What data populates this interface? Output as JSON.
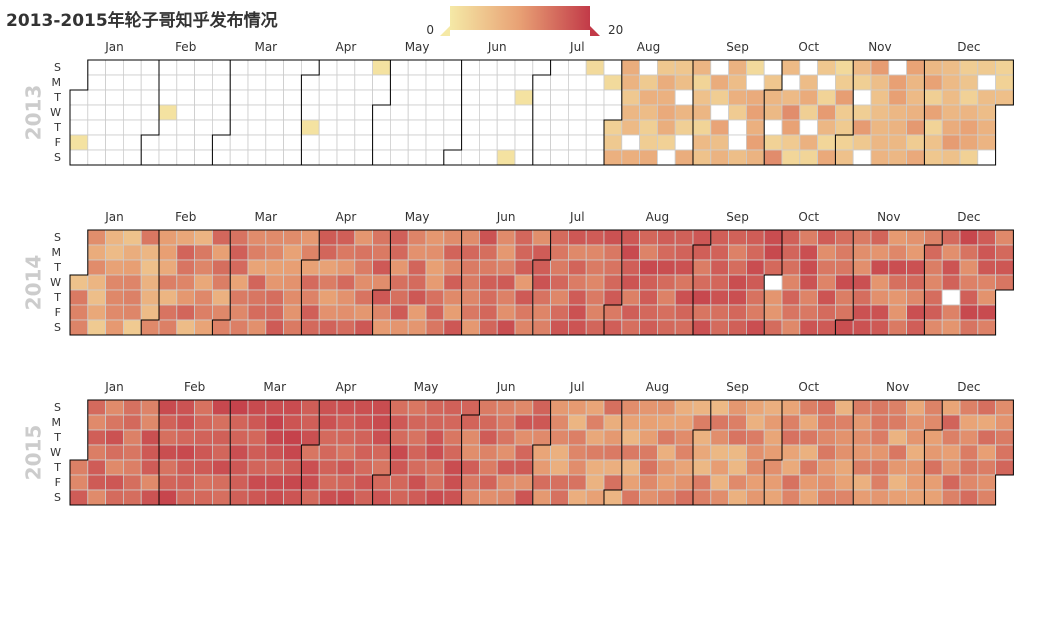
{
  "chart_data": {
    "type": "heatmap",
    "title": "2013-2015年轮子哥知乎发布情况",
    "visual_map": {
      "min": 0,
      "max": 20,
      "min_label": "0",
      "max_label": "20",
      "colors": [
        "#f5e9a6",
        "#e8a074",
        "#c23a48"
      ]
    },
    "week_start": "Sunday",
    "day_labels": [
      "S",
      "M",
      "T",
      "W",
      "T",
      "F",
      "S"
    ],
    "month_labels": [
      "Jan",
      "Feb",
      "Mar",
      "Apr",
      "May",
      "Jun",
      "Jul",
      "Aug",
      "Sep",
      "Oct",
      "Nov",
      "Dec"
    ],
    "empty_color": "#ffffff",
    "calendars": [
      {
        "year": 2013,
        "year_label": "2013",
        "monthly_level": [
          0,
          0.05,
          0,
          0.05,
          0,
          0.05,
          0.1,
          0.3,
          0.3,
          0.35,
          0.35,
          0.35
        ],
        "zero_fraction": [
          0.97,
          0.95,
          1,
          0.95,
          1,
          0.95,
          0.9,
          0.12,
          0.25,
          0.1,
          0.07,
          0.05
        ],
        "spread": [
          0,
          0,
          0,
          0,
          0,
          0,
          0,
          0.2,
          0.2,
          0.25,
          0.2,
          0.2
        ]
      },
      {
        "year": 2014,
        "year_label": "2014",
        "monthly_level": [
          0.45,
          0.55,
          0.65,
          0.68,
          0.7,
          0.72,
          0.75,
          0.78,
          0.8,
          0.72,
          0.72,
          0.75
        ],
        "zero_fraction": [
          0,
          0,
          0,
          0,
          0,
          0,
          0,
          0,
          0,
          0.03,
          0,
          0.03
        ],
        "spread": [
          0.25,
          0.25,
          0.2,
          0.2,
          0.2,
          0.2,
          0.15,
          0.15,
          0.15,
          0.2,
          0.2,
          0.2
        ]
      },
      {
        "year": 2015,
        "year_label": "2015",
        "monthly_level": [
          0.75,
          0.82,
          0.88,
          0.82,
          0.82,
          0.72,
          0.55,
          0.55,
          0.52,
          0.55,
          0.55,
          0.6
        ],
        "zero_fraction": [
          0,
          0,
          0,
          0,
          0,
          0,
          0.03,
          0,
          0,
          0,
          0,
          0
        ],
        "spread": [
          0.15,
          0.12,
          0.1,
          0.12,
          0.12,
          0.15,
          0.2,
          0.2,
          0.2,
          0.2,
          0.2,
          0.2
        ]
      }
    ]
  }
}
